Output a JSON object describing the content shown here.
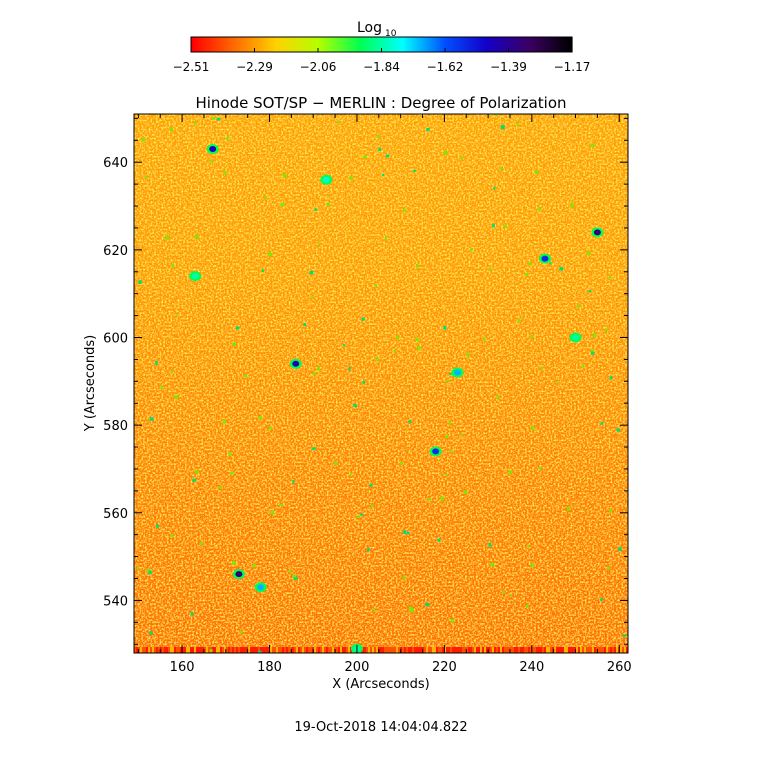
{
  "colorbar": {
    "label_main": "Log",
    "label_sub": "10",
    "ticks": [
      "−2.51",
      "−2.29",
      "−2.06",
      "−1.84",
      "−1.62",
      "−1.39",
      "−1.17"
    ],
    "range": [
      -2.51,
      -1.17
    ],
    "palette": [
      "#ff0000",
      "#ff6a00",
      "#ffd200",
      "#b4ff00",
      "#00ff50",
      "#00ffff",
      "#0050ff",
      "#1400c8",
      "#3c0064",
      "#000000"
    ]
  },
  "chart_data": {
    "type": "heatmap",
    "title": "Hinode SOT/SP − MERLIN : Degree of Polarization",
    "xlabel": "X (Arcseconds)",
    "ylabel": "Y (Arcseconds)",
    "xlim": [
      149,
      262
    ],
    "ylim": [
      528,
      651
    ],
    "xticks": [
      160,
      180,
      200,
      220,
      240,
      260
    ],
    "yticks": [
      540,
      560,
      580,
      600,
      620,
      640
    ],
    "value_scale": "log10",
    "value_range": [
      -2.51,
      -1.17
    ],
    "background_value_range": [
      -2.51,
      -2.13
    ],
    "features": [
      {
        "x": 167,
        "y": 643,
        "value": -1.45
      },
      {
        "x": 193,
        "y": 636,
        "value": -1.8
      },
      {
        "x": 255,
        "y": 624,
        "value": -1.35
      },
      {
        "x": 243,
        "y": 618,
        "value": -1.55
      },
      {
        "x": 186,
        "y": 594,
        "value": -1.45
      },
      {
        "x": 223,
        "y": 592,
        "value": -1.7
      },
      {
        "x": 218,
        "y": 574,
        "value": -1.55
      },
      {
        "x": 173,
        "y": 546,
        "value": -1.35
      },
      {
        "x": 178,
        "y": 543,
        "value": -1.7
      },
      {
        "x": 163,
        "y": 614,
        "value": -1.84
      },
      {
        "x": 250,
        "y": 600,
        "value": -1.84
      },
      {
        "x": 200,
        "y": 529,
        "value": -1.84
      }
    ]
  },
  "timestamp": "19-Oct-2018 14:04:04.822"
}
